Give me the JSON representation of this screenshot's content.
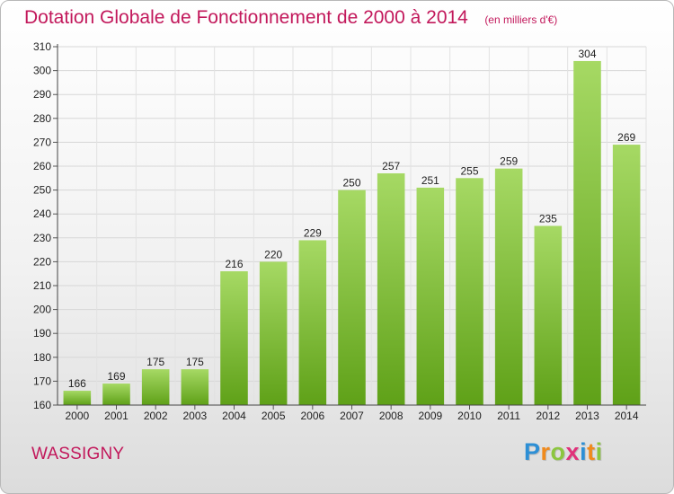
{
  "chart_data": {
    "type": "bar",
    "title": "Dotation Globale de Fonctionnement de 2000 à 2014",
    "unit_label": "(en milliers d'€)",
    "categories": [
      "2000",
      "2001",
      "2002",
      "2003",
      "2004",
      "2005",
      "2006",
      "2007",
      "2008",
      "2009",
      "2010",
      "2011",
      "2012",
      "2013",
      "2014"
    ],
    "values": [
      166,
      169,
      175,
      175,
      216,
      220,
      229,
      250,
      257,
      251,
      255,
      259,
      235,
      304,
      269
    ],
    "ylim": [
      160,
      310
    ],
    "yticks": [
      160,
      170,
      180,
      190,
      200,
      210,
      220,
      230,
      240,
      250,
      260,
      270,
      280,
      290,
      300,
      310
    ],
    "grid": true,
    "bar_color": "#7cc230",
    "accent_color": "#c2185b"
  },
  "footer": {
    "place_name": "WASSIGNY",
    "logo": [
      {
        "ch": "P",
        "color": "#2d8fd5"
      },
      {
        "ch": "r",
        "color": "#f08a1c"
      },
      {
        "ch": "o",
        "color": "#8cc63f"
      },
      {
        "ch": "x",
        "color": "#e0317a"
      },
      {
        "ch": "i",
        "color": "#2d8fd5"
      },
      {
        "ch": "t",
        "color": "#f08a1c"
      },
      {
        "ch": "i",
        "color": "#8cc63f"
      }
    ]
  }
}
